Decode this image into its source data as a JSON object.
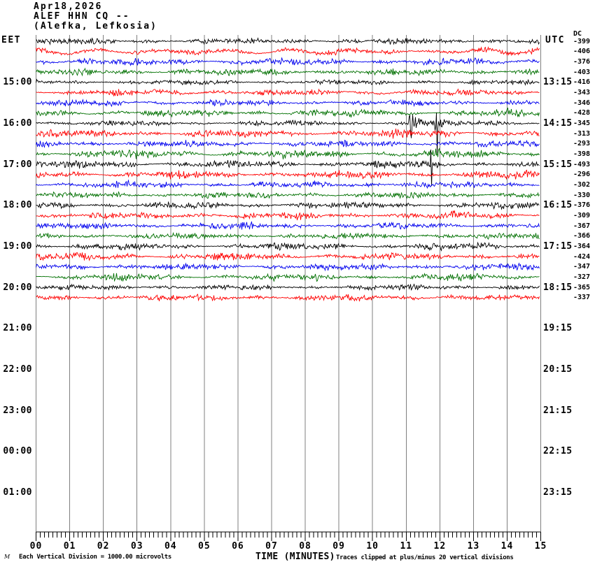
{
  "header": {
    "date": "Apr18,2026",
    "station": "ALEF HHN CQ --",
    "location": "(Alefka, Lefkosia)"
  },
  "axes": {
    "left_title": "EET",
    "right_title": "UTC",
    "dc_title": "DC",
    "x_label": "TIME (MINUTES)",
    "x_ticks": [
      "00",
      "01",
      "02",
      "03",
      "04",
      "05",
      "06",
      "07",
      "08",
      "09",
      "10",
      "11",
      "12",
      "13",
      "14",
      "15"
    ],
    "left_labels": [
      {
        "row": 4,
        "text": "15:00"
      },
      {
        "row": 8,
        "text": "16:00"
      },
      {
        "row": 12,
        "text": "17:00"
      },
      {
        "row": 16,
        "text": "18:00"
      },
      {
        "row": 20,
        "text": "19:00"
      },
      {
        "row": 24,
        "text": "20:00"
      },
      {
        "row": 28,
        "text": "21:00"
      },
      {
        "row": 32,
        "text": "22:00"
      },
      {
        "row": 36,
        "text": "23:00"
      },
      {
        "row": 40,
        "text": "00:00"
      },
      {
        "row": 44,
        "text": "01:00"
      }
    ],
    "right_labels": [
      {
        "row": 4,
        "text": "13:15"
      },
      {
        "row": 8,
        "text": "14:15"
      },
      {
        "row": 12,
        "text": "15:15"
      },
      {
        "row": 16,
        "text": "16:15"
      },
      {
        "row": 20,
        "text": "17:15"
      },
      {
        "row": 24,
        "text": "18:15"
      },
      {
        "row": 28,
        "text": "19:15"
      },
      {
        "row": 32,
        "text": "20:15"
      },
      {
        "row": 36,
        "text": "21:15"
      },
      {
        "row": 40,
        "text": "22:15"
      },
      {
        "row": 44,
        "text": "23:15"
      }
    ]
  },
  "footer": {
    "left_note": "Each Vertical Division = 1000.00 microvolts",
    "right_note": "Traces clipped at plus/minus 20 vertical divisions",
    "watermark": "M"
  },
  "chart_data": {
    "type": "line",
    "description": "helicorder seismogram, 15-minute rows, 4 rows per hour",
    "x_range_minutes": [
      0,
      15
    ],
    "minor_tick_minutes": 0.125,
    "grid_color": "#7f7f7f",
    "colors_cycle": {
      "black": "#000000",
      "red": "#ff0000",
      "blue": "#0000ee",
      "green": "#007000"
    },
    "traces": [
      {
        "row": 0,
        "color": "black",
        "dc": "-399",
        "amp": 1.7,
        "slow": 0.5,
        "patch": 0.5
      },
      {
        "row": 1,
        "color": "red",
        "dc": "-406",
        "amp": 1.6,
        "slow": 3.2,
        "patch": 0.4
      },
      {
        "row": 2,
        "color": "blue",
        "dc": "-376",
        "amp": 1.9,
        "slow": 1.2,
        "patch": 0.5
      },
      {
        "row": 3,
        "color": "green",
        "dc": "-403",
        "amp": 1.9,
        "slow": 0.8,
        "patch": 0.5
      },
      {
        "row": 4,
        "color": "black",
        "dc": "-416",
        "amp": 1.4,
        "slow": 0.5,
        "patch": 0.5
      },
      {
        "row": 5,
        "color": "red",
        "dc": "-343",
        "amp": 1.8,
        "slow": 1.5,
        "patch": 0.5
      },
      {
        "row": 6,
        "color": "blue",
        "dc": "-346",
        "amp": 1.7,
        "slow": 1.0,
        "patch": 0.5
      },
      {
        "row": 7,
        "color": "green",
        "dc": "-428",
        "amp": 2.0,
        "slow": 1.2,
        "patch": 0.6
      },
      {
        "row": 8,
        "color": "black",
        "dc": "-345",
        "amp": 1.5,
        "slow": 0.5,
        "patch": 0.5
      },
      {
        "row": 9,
        "color": "red",
        "dc": "-313",
        "amp": 2.2,
        "slow": 1.2,
        "patch": 0.6
      },
      {
        "row": 10,
        "color": "blue",
        "dc": "-293",
        "amp": 1.8,
        "slow": 0.8,
        "patch": 0.5
      },
      {
        "row": 11,
        "color": "green",
        "dc": "-398",
        "amp": 2.2,
        "slow": 1.4,
        "patch": 0.6
      },
      {
        "row": 12,
        "color": "black",
        "dc": "-493",
        "amp": 2.0,
        "slow": 0.8,
        "patch": 0.6
      },
      {
        "row": 13,
        "color": "red",
        "dc": "-296",
        "amp": 2.2,
        "slow": 1.2,
        "patch": 0.6
      },
      {
        "row": 14,
        "color": "blue",
        "dc": "-302",
        "amp": 1.9,
        "slow": 1.0,
        "patch": 0.5
      },
      {
        "row": 15,
        "color": "green",
        "dc": "-330",
        "amp": 1.8,
        "slow": 0.9,
        "patch": 0.5
      },
      {
        "row": 16,
        "color": "black",
        "dc": "-376",
        "amp": 1.9,
        "slow": 0.6,
        "patch": 0.6
      },
      {
        "row": 17,
        "color": "red",
        "dc": "-309",
        "amp": 2.0,
        "slow": 1.2,
        "patch": 0.5
      },
      {
        "row": 18,
        "color": "blue",
        "dc": "-367",
        "amp": 1.8,
        "slow": 0.9,
        "patch": 0.5
      },
      {
        "row": 19,
        "color": "green",
        "dc": "-366",
        "amp": 1.7,
        "slow": 0.8,
        "patch": 0.5
      },
      {
        "row": 20,
        "color": "black",
        "dc": "-364",
        "amp": 2.0,
        "slow": 0.6,
        "patch": 0.6
      },
      {
        "row": 21,
        "color": "red",
        "dc": "-424",
        "amp": 2.2,
        "slow": 1.2,
        "patch": 0.6
      },
      {
        "row": 22,
        "color": "blue",
        "dc": "-347",
        "amp": 1.9,
        "slow": 0.9,
        "patch": 0.5
      },
      {
        "row": 23,
        "color": "green",
        "dc": "-327",
        "amp": 1.9,
        "slow": 1.0,
        "patch": 0.6
      },
      {
        "row": 24,
        "color": "black",
        "dc": "-365",
        "amp": 1.6,
        "slow": 0.5,
        "patch": 0.5
      },
      {
        "row": 25,
        "color": "red",
        "dc": "-337",
        "amp": 1.8,
        "slow": 1.0,
        "patch": 0.5
      }
    ],
    "events": [
      {
        "row": 8,
        "type": "double-burst",
        "bursts": [
          {
            "minute": 11.12,
            "amp": 16,
            "tau": 9,
            "coda_amp": 4,
            "coda_tau": 45
          },
          {
            "minute": 11.89,
            "amp": 12,
            "tau": 7,
            "coda_amp": 2.5,
            "coda_tau": 60
          }
        ],
        "spikes": [
          {
            "minute": 11.89,
            "up": 15,
            "down": 45
          }
        ]
      },
      {
        "row": 12,
        "type": "spike",
        "bursts": [
          {
            "minute": 11.74,
            "amp": 5,
            "tau": 3,
            "coda_amp": 1,
            "coda_tau": 20
          }
        ],
        "spikes": [
          {
            "minute": 11.74,
            "up": 21,
            "down": 31
          }
        ]
      }
    ]
  }
}
